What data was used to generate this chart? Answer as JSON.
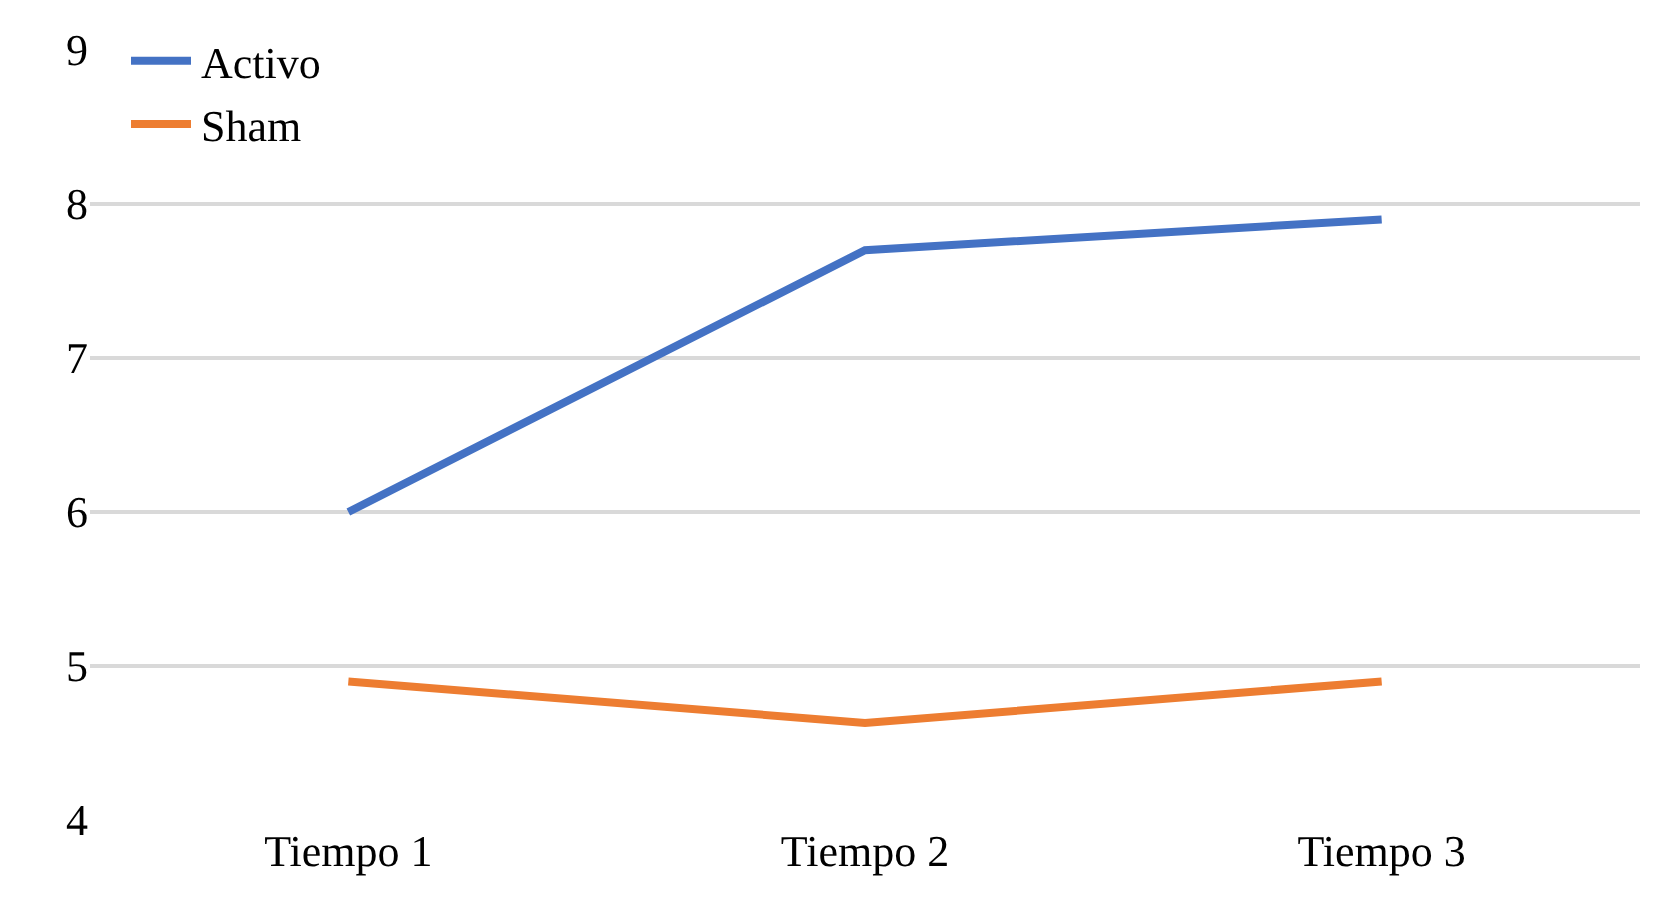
{
  "chart_data": {
    "type": "line",
    "categories": [
      "Tiempo 1",
      "Tiempo 2",
      "Tiempo 3"
    ],
    "series": [
      {
        "name": "Activo",
        "color": "#4472c4",
        "values": [
          6.0,
          7.7,
          7.9
        ]
      },
      {
        "name": "Sham",
        "color": "#ed7d31",
        "values": [
          4.9,
          4.63,
          4.9
        ]
      }
    ],
    "ylim": [
      4,
      9
    ],
    "yticks": [
      4,
      5,
      6,
      7,
      8,
      9
    ],
    "grid": "y",
    "legend": "top left",
    "marker": "none",
    "line_style": "solid"
  }
}
